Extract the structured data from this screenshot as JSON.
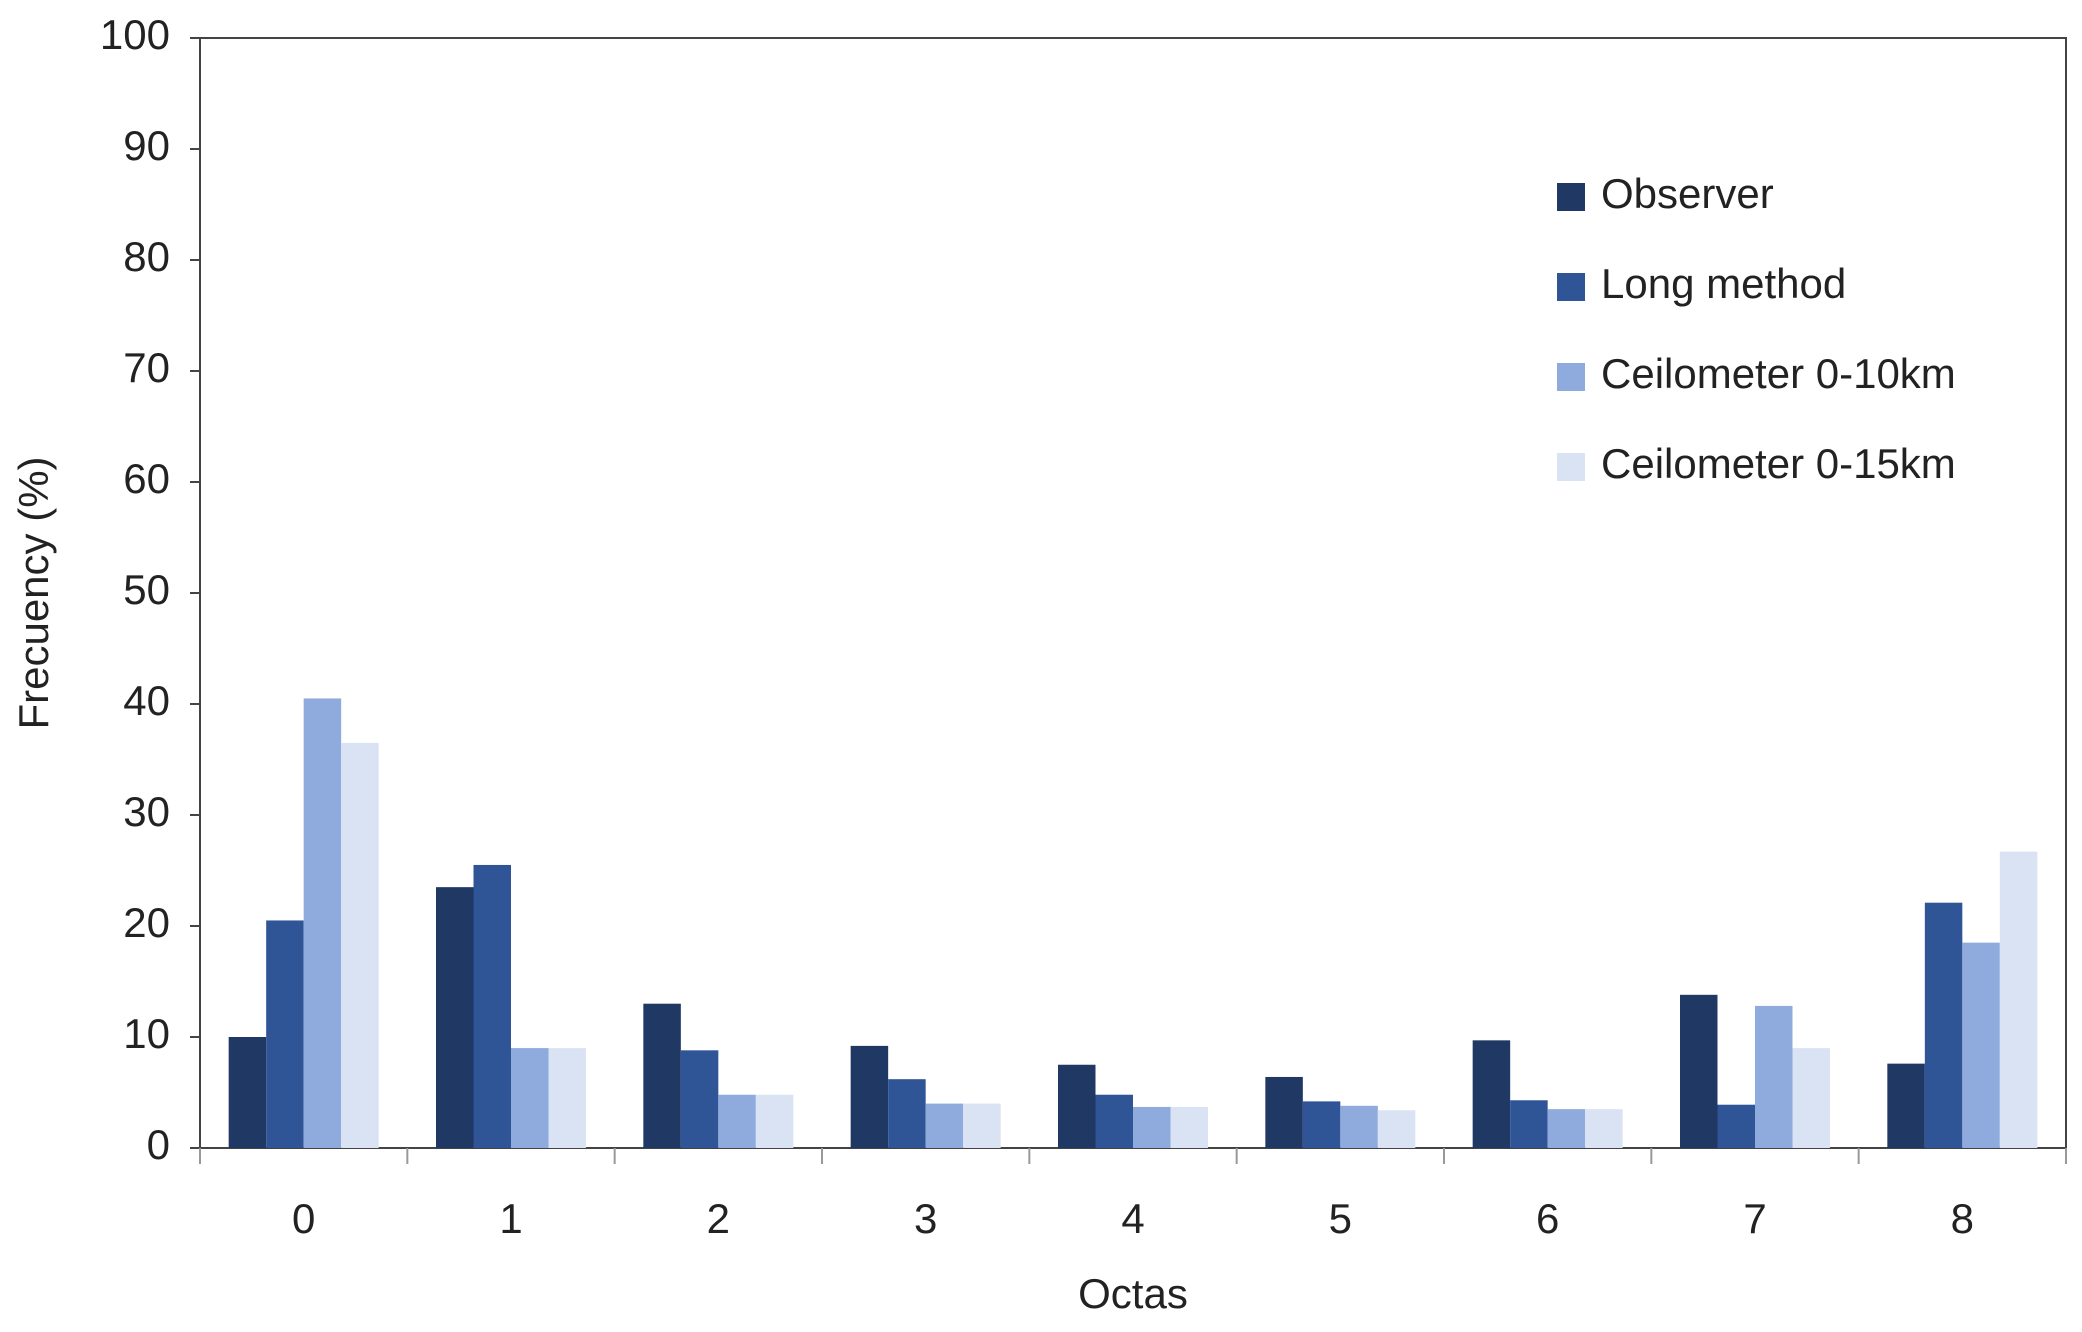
{
  "chart_data": {
    "type": "bar",
    "x_label": "Octas",
    "y_label": "Frecuency (%)",
    "categories": [
      "0",
      "1",
      "2",
      "3",
      "4",
      "5",
      "6",
      "7",
      "8"
    ],
    "series": [
      {
        "name": "Observer",
        "color": "#203864",
        "values": [
          10,
          23.5,
          13,
          9.2,
          7.5,
          6.4,
          9.7,
          13.8,
          7.6
        ]
      },
      {
        "name": "Long method",
        "color": "#2f5597",
        "values": [
          20.5,
          25.5,
          8.8,
          6.2,
          4.8,
          4.2,
          4.3,
          3.9,
          22.1
        ]
      },
      {
        "name": "Ceilometer 0-10km",
        "color": "#8faadc",
        "values": [
          40.5,
          9,
          4.8,
          4,
          3.7,
          3.8,
          3.5,
          12.8,
          18.5
        ]
      },
      {
        "name": "Ceilometer 0-15km",
        "color": "#dae3f3",
        "values": [
          36.5,
          9,
          4.8,
          4,
          3.7,
          3.4,
          3.5,
          9,
          26.7
        ]
      }
    ],
    "ylim": [
      0,
      100
    ],
    "yticks": [
      0,
      10,
      20,
      30,
      40,
      50,
      60,
      70,
      80,
      90,
      100
    ],
    "grid": false,
    "legend": "upper right"
  }
}
